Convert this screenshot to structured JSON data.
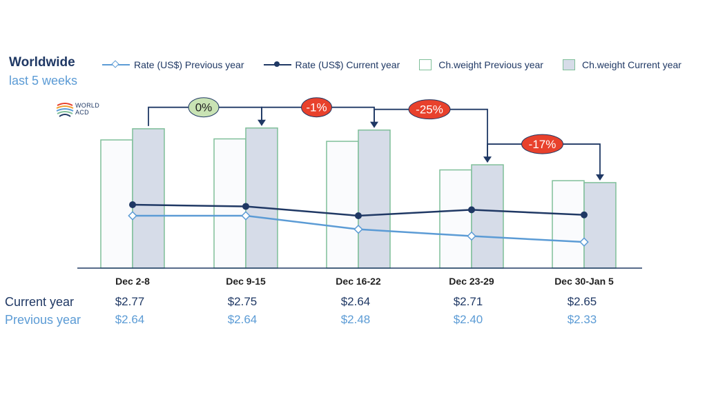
{
  "title": "Worldwide",
  "subtitle": "last 5 weeks",
  "logo_text": [
    "WORLD",
    "ACD"
  ],
  "legend": [
    {
      "label": "Rate (US$) Previous year",
      "kind": "line-diamond",
      "color": "#5b9bd5"
    },
    {
      "label": "Rate (US$) Current year",
      "kind": "line-dot",
      "color": "#1f3864"
    },
    {
      "label": "Ch.weight Previous year",
      "kind": "box",
      "fill": "#ffffff"
    },
    {
      "label": "Ch.weight Current year",
      "kind": "box",
      "fill": "#d6dce8"
    }
  ],
  "chart_data": {
    "type": "bar",
    "categories": [
      "Dec 2-8",
      "Dec 9-15",
      "Dec 16-22",
      "Dec 23-29",
      "Dec 30-Jan 5"
    ],
    "series": [
      {
        "name": "Ch.weight Previous year",
        "type": "bar",
        "values": [
          100,
          100.8,
          98.9,
          76.6,
          68.2
        ]
      },
      {
        "name": "Ch.weight Current year",
        "type": "bar",
        "values": [
          108.7,
          109.3,
          107.7,
          80.6,
          66.7
        ]
      },
      {
        "name": "Rate (US$) Previous year",
        "type": "line",
        "values": [
          2.64,
          2.64,
          2.48,
          2.4,
          2.33
        ]
      },
      {
        "name": "Rate (US$) Current year",
        "type": "line",
        "values": [
          2.77,
          2.75,
          2.64,
          2.71,
          2.65
        ]
      }
    ],
    "annotations": [
      {
        "label": "0%",
        "from": 0,
        "to": 1,
        "style": "green"
      },
      {
        "label": "-1%",
        "from": 1,
        "to": 2,
        "style": "red"
      },
      {
        "label": "-25%",
        "from": 2,
        "to": 3,
        "style": "red"
      },
      {
        "label": "-17%",
        "from": 3,
        "to": 4,
        "style": "red"
      }
    ],
    "colors": {
      "prev_line": "#5b9bd5",
      "cur_line": "#1f3864",
      "bar_border": "#7fbf99",
      "bar_prev_fill": "#fafbfd",
      "bar_cur_fill": "#d6dce8",
      "badge_red": "#e8412c",
      "badge_green": "#c9e3b4",
      "axis": "#1f3864"
    }
  },
  "table": {
    "current_label": "Current year",
    "previous_label": "Previous year",
    "current": [
      "$2.77",
      "$2.75",
      "$2.64",
      "$2.71",
      "$2.65"
    ],
    "previous": [
      "$2.64",
      "$2.64",
      "$2.48",
      "$2.40",
      "$2.33"
    ]
  }
}
